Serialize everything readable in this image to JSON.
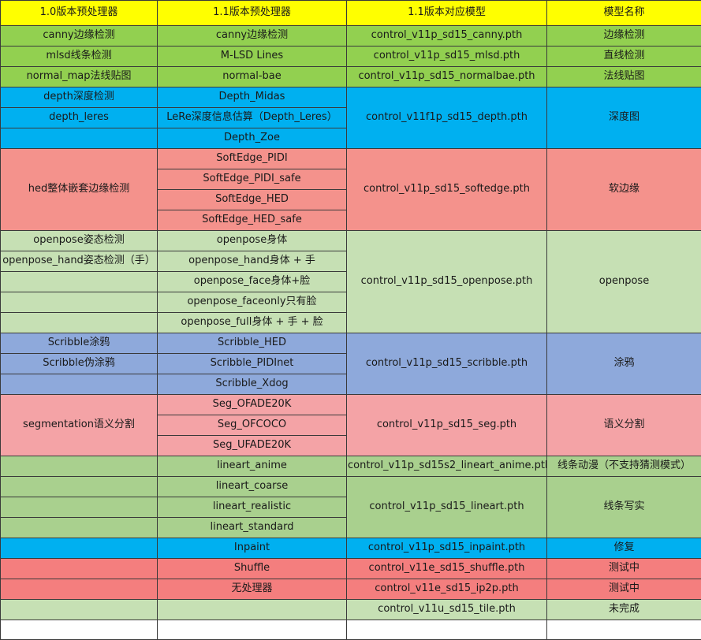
{
  "columns": [
    "1.0版本预处理器",
    "1.1版本预处理器",
    "1.1版本对应模型",
    "模型名称"
  ],
  "colors": {
    "header": "#ffff00",
    "lime": "#92d050",
    "blue": "#00b0f0",
    "salmon": "#f4928c",
    "pale_green": "#c6e0b4",
    "periwinkle": "#8ea9db",
    "pink": "#f4a3a6",
    "green": "#a9d08e",
    "coral": "#f47e7e"
  },
  "rows": {
    "canny": {
      "pre10": "canny边缘检测",
      "pre11": "canny边缘检测",
      "model": "control_v11p_sd15_canny.pth",
      "name": "边缘检测"
    },
    "mlsd": {
      "pre10": "mlsd线条检测",
      "pre11": "M-LSD Lines",
      "model": "control_v11p_sd15_mlsd.pth",
      "name": "直线检测"
    },
    "normal": {
      "pre10": "normal_map法线贴图",
      "pre11": "normal-bae",
      "model": "control_v11p_sd15_normalbae.pth",
      "name": "法线贴图"
    },
    "depth": {
      "pre10": [
        "depth深度检测",
        "depth_leres"
      ],
      "pre11": [
        "Depth_Midas",
        "LeRe深度信息估算（Depth_Leres）",
        "Depth_Zoe"
      ],
      "model": "control_v11f1p_sd15_depth.pth",
      "name": "深度图"
    },
    "softedge": {
      "pre10": "hed整体嵌套边缘检测",
      "pre11": [
        "SoftEdge_PIDI",
        "SoftEdge_PIDI_safe",
        "SoftEdge_HED",
        "SoftEdge_HED_safe"
      ],
      "model": "control_v11p_sd15_softedge.pth",
      "name": "软边缘"
    },
    "openpose": {
      "pre10": [
        "openpose姿态检测",
        "openpose_hand姿态检测（手）"
      ],
      "pre11": [
        "openpose身体",
        "openpose_hand身体 + 手",
        "openpose_face身体+脸",
        "openpose_faceonly只有脸",
        "openpose_full身体 + 手 +  脸"
      ],
      "model": "control_v11p_sd15_openpose.pth",
      "name": "openpose"
    },
    "scribble": {
      "pre10": [
        "Scribble涂鸦",
        "Scribble伪涂鸦"
      ],
      "pre11": [
        "Scribble_HED",
        "Scribble_PIDInet",
        "Scribble_Xdog"
      ],
      "model": "control_v11p_sd15_scribble.pth",
      "name": "涂鸦"
    },
    "seg": {
      "pre10": "segmentation语义分割",
      "pre11": [
        "Seg_OFADE20K",
        "Seg_OFCOCO",
        "Seg_UFADE20K"
      ],
      "model": "control_v11p_sd15_seg.pth",
      "name": "语义分割"
    },
    "lineart_anime": {
      "pre11": "lineart_anime",
      "model": "control_v11p_sd15s2_lineart_anime.pth",
      "name": "线条动漫（不支持猜测模式）"
    },
    "lineart": {
      "pre11": [
        "lineart_coarse",
        "lineart_realistic",
        "lineart_standard"
      ],
      "model": "control_v11p_sd15_lineart.pth",
      "name": "线条写实"
    },
    "inpaint": {
      "pre11": "Inpaint",
      "model": "control_v11p_sd15_inpaint.pth",
      "name": "修复"
    },
    "shuffle": {
      "pre11": "Shuffle",
      "model": "control_v11e_sd15_shuffle.pth",
      "name": "测试中"
    },
    "ip2p": {
      "pre11": "无处理器",
      "model": "control_v11e_sd15_ip2p.pth",
      "name": "测试中"
    },
    "tile": {
      "model": "control_v11u_sd15_tile.pth",
      "name": "未完成"
    }
  }
}
